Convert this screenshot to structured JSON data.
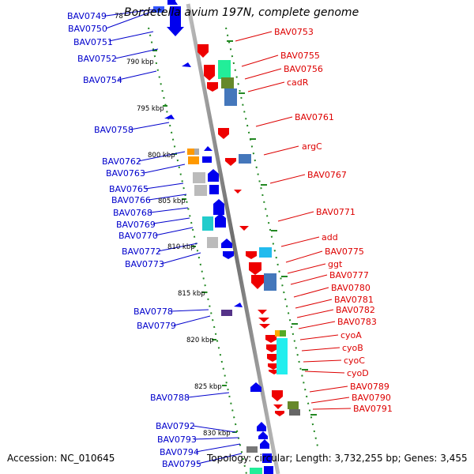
{
  "title": "Bordetella avium 197N, complete genome",
  "footer": {
    "accession": "Accession: NC_010645",
    "topology": "Topology: circular; Length: 3,732,255 bp; Genes: 3,455"
  },
  "kbp_ticks": [
    "78",
    "790 kbp",
    "795 kbp",
    "800 kbp",
    "805 kbp",
    "810 kbp",
    "815 kbp",
    "820 kbp",
    "825 kbp",
    "830 kbp"
  ],
  "left_labels": [
    "BAV0749",
    "BAV0750",
    "BAV0751",
    "BAV0752",
    "BAV0754",
    "BAV0758",
    "BAV0762",
    "BAV0763",
    "BAV0765",
    "BAV0766",
    "BAV0768",
    "BAV0769",
    "BAV0770",
    "BAV0772",
    "BAV0773",
    "BAV0778",
    "BAV0779",
    "BAV0788",
    "BAV0792",
    "BAV0793",
    "BAV0794",
    "BAV0795"
  ],
  "right_labels": [
    "BAV0753",
    "BAV0755",
    "BAV0756",
    "cadR",
    "BAV0761",
    "argC",
    "BAV0767",
    "BAV0771",
    "add",
    "BAV0775",
    "ggt",
    "BAV0777",
    "BAV0780",
    "BAV0781",
    "BAV0782",
    "BAV0783",
    "cyoA",
    "cyoB",
    "cyoC",
    "cyoD",
    "BAV0789",
    "BAV0790",
    "BAV0791"
  ],
  "colors": {
    "forward_gene": "#0000ee",
    "reverse_gene": "#ee0000",
    "backbone": "#888888",
    "kbp_dots": "#228822"
  }
}
